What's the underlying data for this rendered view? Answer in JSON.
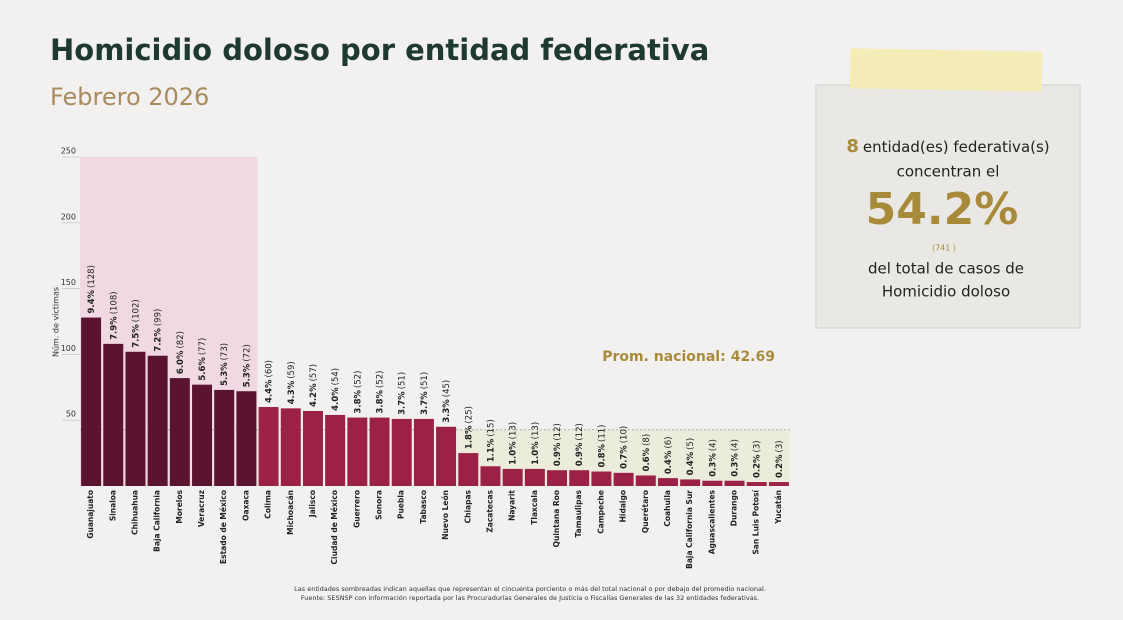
{
  "chart_data": {
    "type": "bar",
    "title": "Homicidio doloso por entidad federativa",
    "subtitle": "Febrero 2026",
    "y_label": "Núm. de víctimas",
    "categories": [
      "Guanajuato",
      "Sinaloa",
      "Chihuahua",
      "Baja California",
      "Morelos",
      "Veracruz",
      "Estado de México",
      "Oaxaca",
      "Colima",
      "Michoacán",
      "Jalisco",
      "Ciudad de México",
      "Guerrero",
      "Sonora",
      "Puebla",
      "Tabasco",
      "Nuevo León",
      "Chiapas",
      "Zacatecas",
      "Nayarit",
      "Tlaxcala",
      "Quintana Roo",
      "Tamaulipas",
      "Campeche",
      "Hidalgo",
      "Querétaro",
      "Coahuila",
      "Baja California Sur",
      "Aguascalientes",
      "Durango",
      "San Luis Potosí",
      "Yucatán"
    ],
    "values": [
      128,
      108,
      102,
      99,
      82,
      77,
      73,
      72,
      60,
      59,
      57,
      54,
      52,
      52,
      51,
      51,
      45,
      25,
      15,
      13,
      13,
      12,
      12,
      11,
      10,
      8,
      6,
      5,
      4,
      4,
      3,
      3
    ],
    "percent_labels": [
      "9.4%",
      "7.9%",
      "7.5%",
      "7.2%",
      "6.0%",
      "5.6%",
      "5.3%",
      "5.3%",
      "4.4%",
      "4.3%",
      "4.2%",
      "4.0%",
      "3.8%",
      "3.8%",
      "3.7%",
      "3.7%",
      "3.3%",
      "1.8%",
      "1.1%",
      "1.0%",
      "1.0%",
      "0.9%",
      "0.9%",
      "0.8%",
      "0.7%",
      "0.6%",
      "0.4%",
      "0.4%",
      "0.3%",
      "0.3%",
      "0.2%",
      "0.2%"
    ],
    "value_labels": [
      "(128)",
      "(108)",
      "(102)",
      "(99)",
      "(82)",
      "(77)",
      "(73)",
      "(72)",
      "(60)",
      "(59)",
      "(57)",
      "(54)",
      "(52)",
      "(52)",
      "(51)",
      "(51)",
      "(45)",
      "(25)",
      "(15)",
      "(13)",
      "(13)",
      "(12)",
      "(12)",
      "(11)",
      "(10)",
      "(8)",
      "(6)",
      "(5)",
      "(4)",
      "(4)",
      "(3)",
      "(3)"
    ],
    "highlight_color": "#5a1430",
    "color": "#9b2147",
    "average": 42.69,
    "average_label": "Prom. nacional:",
    "ylim": [
      0,
      250
    ],
    "yticks": [
      50,
      100,
      150,
      200,
      250
    ],
    "footnotes": [
      "Las entidades sombreadas indican aquellas que representan el cincuenta porciento o más del total nacional o por debajo del promedio nacional.",
      "Fuente: SESNSP con información reportada por las Procuradurías Generales de Justicia o Fiscalías Generales de las 32 entidades federativas."
    ]
  },
  "callout": {
    "count": 8,
    "count_text": "entidad(es) federativa(s)",
    "line2": "concentran el",
    "share": "54.2%",
    "total": "(741 )",
    "line4": "del total de casos de",
    "line5": "Homicidio doloso"
  }
}
